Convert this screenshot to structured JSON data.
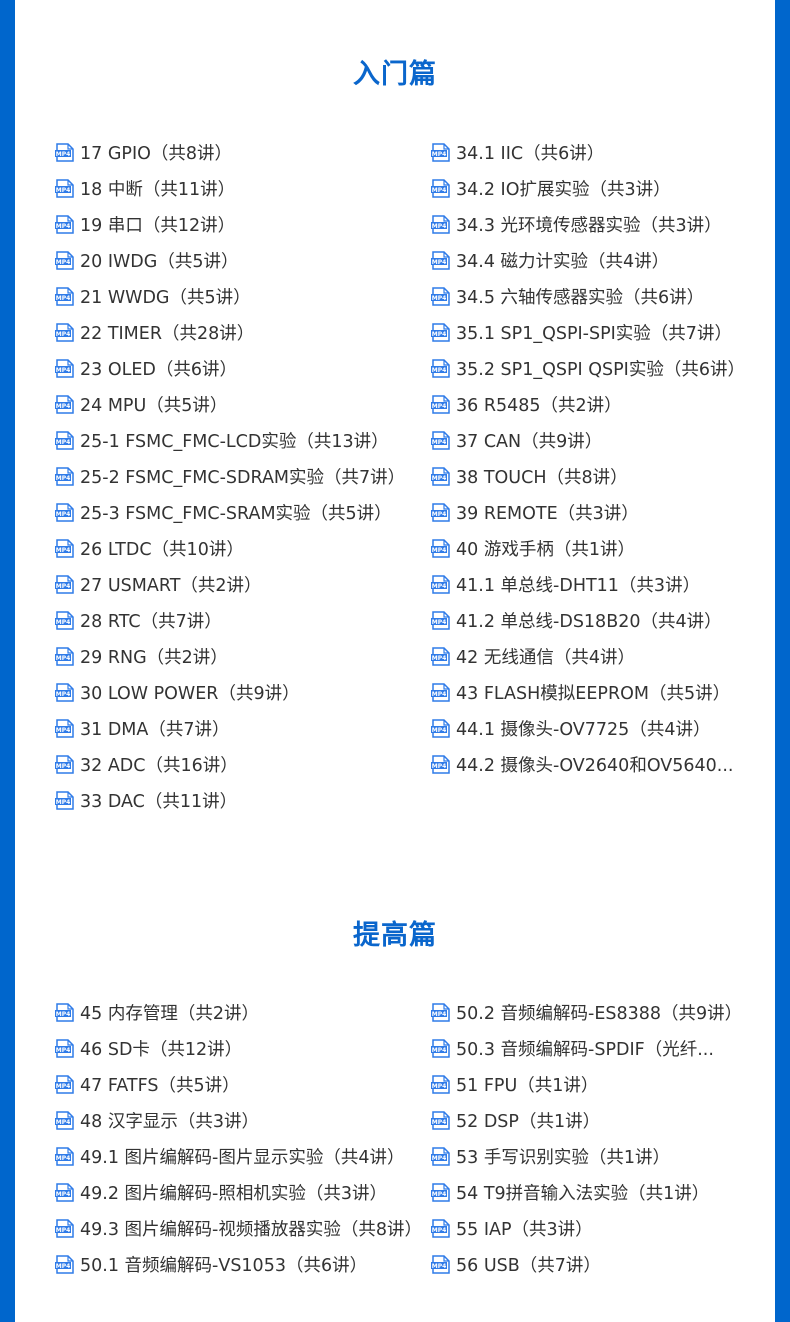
{
  "colors": {
    "accent": "#0066cc",
    "title": "#0a66cc",
    "icon": "#2f7be8"
  },
  "icon": "mp4-file-icon",
  "sections": [
    {
      "title": "入门篇",
      "left": [
        "17 GPIO（共8讲）",
        "18 中断（共11讲）",
        "19 串口（共12讲）",
        "20 IWDG（共5讲）",
        "21 WWDG（共5讲）",
        "22 TIMER（共28讲）",
        "23 OLED（共6讲）",
        "24 MPU（共5讲）",
        "25-1 FSMC_FMC-LCD实验（共13讲）",
        "25-2 FSMC_FMC-SDRAM实验（共7讲）",
        "25-3 FSMC_FMC-SRAM实验（共5讲）",
        "26 LTDC（共10讲）",
        "27 USMART（共2讲）",
        "28 RTC（共7讲）",
        "29 RNG（共2讲）",
        "30 LOW POWER（共9讲）",
        "31 DMA（共7讲）",
        "32 ADC（共16讲）",
        "33 DAC（共11讲）"
      ],
      "right": [
        "34.1 IIC（共6讲）",
        "34.2 IO扩展实验（共3讲）",
        "34.3 光环境传感器实验（共3讲）",
        "34.4 磁力计实验（共4讲）",
        "34.5 六轴传感器实验（共6讲）",
        "35.1 SP1_QSPI-SPI实验（共7讲）",
        "35.2 SP1_QSPI QSPI实验（共6讲）",
        "36 R5485（共2讲）",
        "37 CAN（共9讲）",
        "38 TOUCH（共8讲）",
        "39 REMOTE（共3讲）",
        "40 游戏手柄（共1讲）",
        "41.1 单总线-DHT11（共3讲）",
        "41.2 单总线-DS18B20（共4讲）",
        "42 无线通信（共4讲）",
        "43 FLASH模拟EEPROM（共5讲）",
        "44.1 摄像头-OV7725（共4讲）",
        "44.2 摄像头-OV2640和OV5640..."
      ]
    },
    {
      "title": "提高篇",
      "left": [
        "45 内存管理（共2讲）",
        "46 SD卡（共12讲）",
        "47 FATFS（共5讲）",
        "48 汉字显示（共3讲）",
        "49.1 图片编解码-图片显示实验（共4讲）",
        "49.2 图片编解码-照相机实验（共3讲）",
        "49.3 图片编解码-视频播放器实验（共8讲）",
        "50.1 音频编解码-VS1053（共6讲）"
      ],
      "right": [
        "50.2 音频编解码-ES8388（共9讲）",
        "50.3 音频编解码-SPDIF（光纤...",
        "51 FPU（共1讲）",
        "52 DSP（共1讲）",
        "53 手写识别实验（共1讲）",
        "54 T9拼音输入法实验（共1讲）",
        "55 IAP（共3讲）",
        "56 USB（共7讲）"
      ]
    }
  ]
}
